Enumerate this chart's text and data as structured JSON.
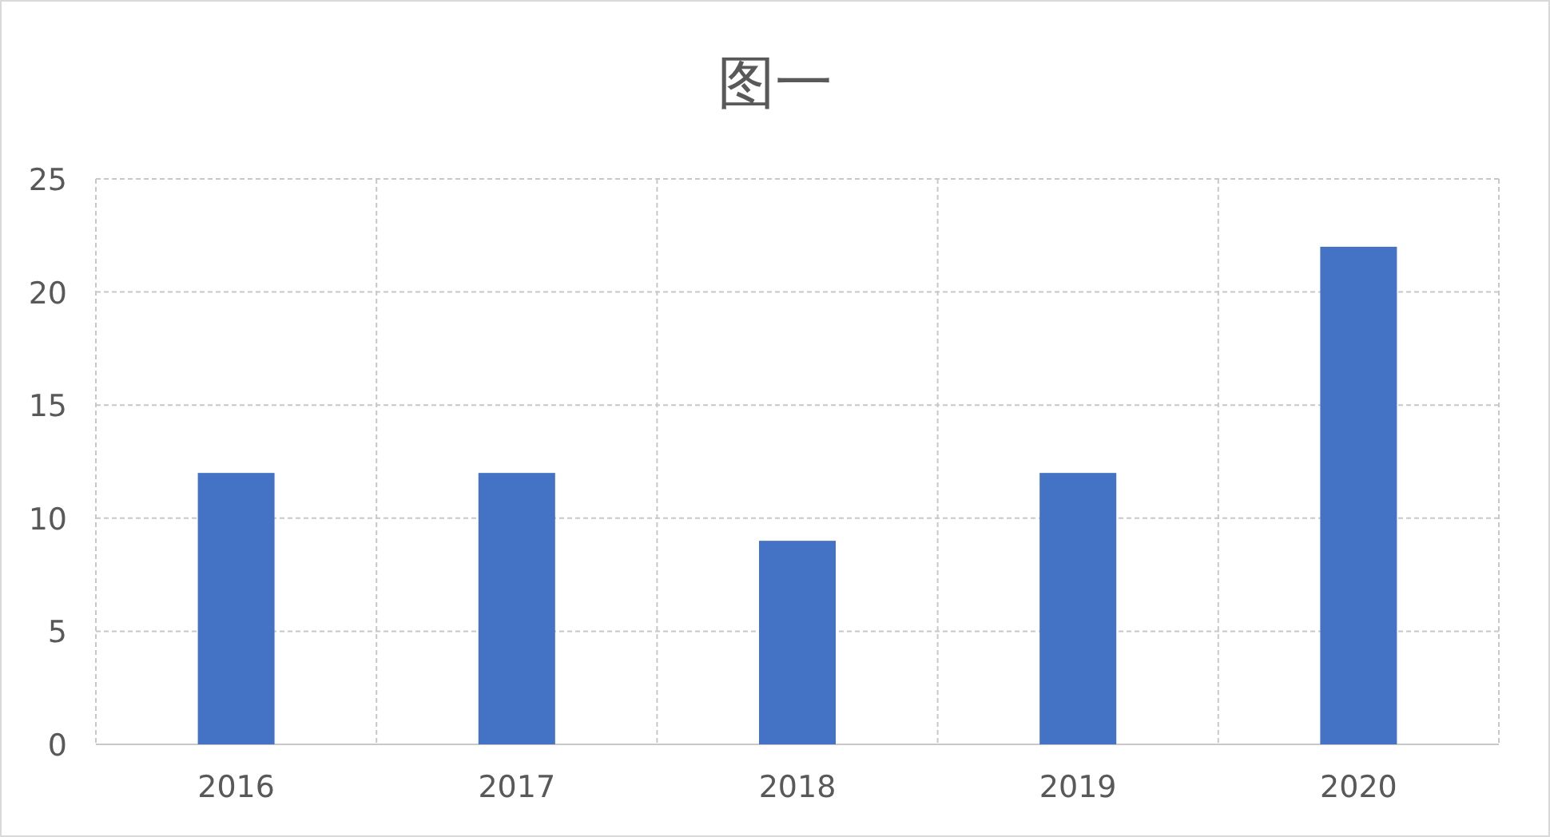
{
  "chart_data": {
    "type": "bar",
    "title": "图一",
    "categories": [
      "2016",
      "2017",
      "2018",
      "2019",
      "2020"
    ],
    "values": [
      12,
      12,
      9,
      12,
      22
    ],
    "color": "#4472c4",
    "ylim": [
      0,
      25
    ],
    "yticks": [
      0,
      5,
      10,
      15,
      20,
      25
    ],
    "grid": true
  }
}
